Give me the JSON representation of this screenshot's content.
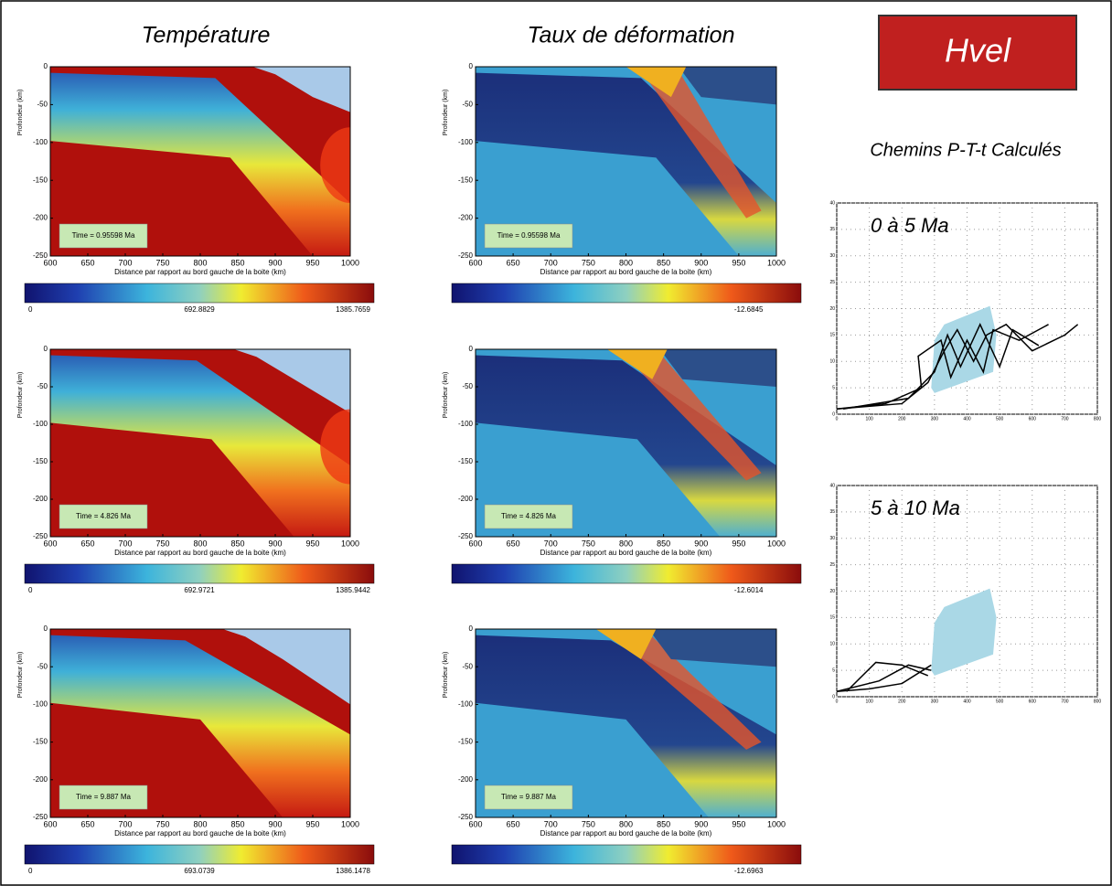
{
  "titles": {
    "temperature": "Température",
    "strain": "Taux de déformation",
    "hvel": "Hvel",
    "pt": "Chemins P-T-t Calculés"
  },
  "axes": {
    "xticks": [
      600,
      650,
      700,
      750,
      800,
      850,
      900,
      950,
      1000
    ],
    "yticks": [
      0,
      -50,
      -100,
      -150,
      -200,
      -250
    ],
    "xlabel": "Distance par rapport au bord gauche de la boite (km)",
    "ylabel": "Profondeur (km)"
  },
  "temperature_panels": [
    {
      "time": "Time = 0.95598 Ma",
      "colorbar": [
        0,
        692.8829,
        1385.7659
      ]
    },
    {
      "time": "Time = 4.826 Ma",
      "colorbar": [
        0,
        692.9721,
        1385.9442
      ]
    },
    {
      "time": "Time = 9.887 Ma",
      "colorbar": [
        0,
        693.0739,
        1386.1478
      ]
    }
  ],
  "strain_panels": [
    {
      "time": "Time = 0.95598 Ma",
      "colorbar": [
        -12.6845
      ]
    },
    {
      "time": "Time = 4.826 Ma",
      "colorbar": [
        -12.6014
      ]
    },
    {
      "time": "Time = 9.887 Ma",
      "colorbar": [
        -12.6963
      ]
    }
  ],
  "pt_axes": {
    "xticks": [
      0,
      100,
      200,
      300,
      400,
      500,
      600,
      700,
      800
    ],
    "yticks": [
      0,
      5,
      10,
      15,
      20,
      25,
      30,
      35,
      40
    ]
  },
  "pt_plots": [
    {
      "label": "0 à 5 Ma"
    },
    {
      "label": "5 à 10 Ma"
    }
  ]
}
